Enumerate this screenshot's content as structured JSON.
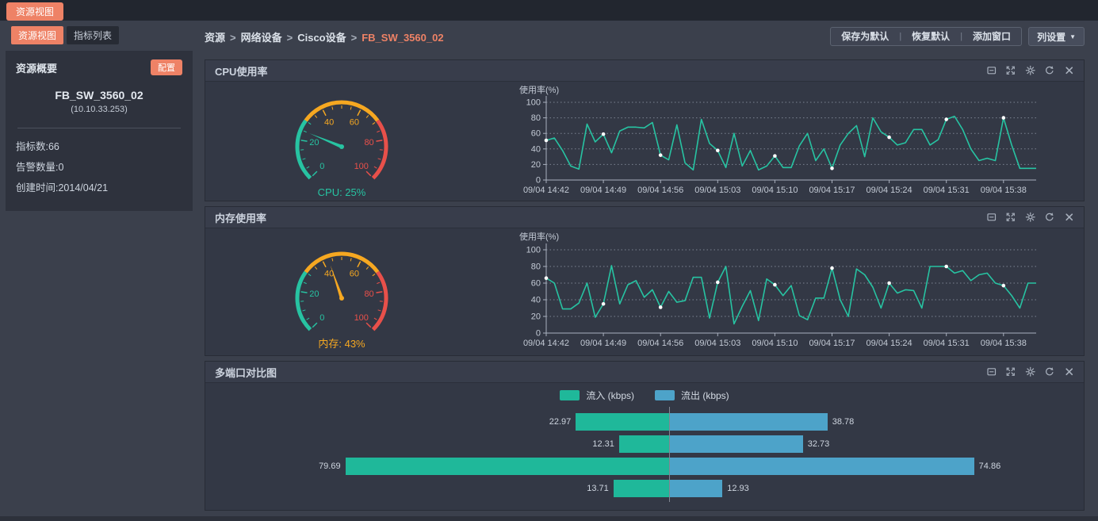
{
  "topbar": {
    "tab": "资源视图"
  },
  "sidebar": {
    "tabs": [
      {
        "label": "资源视图"
      },
      {
        "label": "指标列表"
      }
    ],
    "summary": {
      "title": "资源概要",
      "config_button": "配置",
      "device_name": "FB_SW_3560_02",
      "device_ip": "(10.10.33.253)",
      "metric_count": "指标数:66",
      "alarm_count": "告警数量:0",
      "created_time": "创建时间:2014/04/21"
    }
  },
  "breadcrumb": {
    "items": [
      "资源",
      "网络设备",
      "Cisco设备",
      "FB_SW_3560_02"
    ],
    "separator": ">"
  },
  "toolbar": {
    "save_default": "保存为默认",
    "restore_default": "恢复默认",
    "add_window": "添加窗口",
    "column_settings": "列设置"
  },
  "panels": [
    {
      "title": "CPU使用率"
    },
    {
      "title": "内存使用率"
    },
    {
      "title": "多端口对比图"
    }
  ],
  "panel_action_icons": [
    "collapse-icon",
    "fullscreen-icon",
    "settings-icon",
    "refresh-icon",
    "close-icon"
  ],
  "colors": {
    "accent": "#ee8266",
    "teal": "#27c3a2",
    "orange": "#f6a821",
    "red": "#e8504a",
    "blue": "#4da3c9"
  },
  "chart_data": [
    {
      "type": "gauge",
      "panel": "CPU使用率",
      "value": 25,
      "min": 0,
      "max": 100,
      "label": "CPU: 25%",
      "label_color": "#27c3a2",
      "needle_color": "#27c3a2",
      "segments": [
        {
          "to": 30,
          "color": "#27c3a2"
        },
        {
          "to": 70,
          "color": "#f6a821"
        },
        {
          "to": 100,
          "color": "#e8504a"
        }
      ],
      "tick_labels": [
        0,
        20,
        40,
        60,
        80,
        100
      ]
    },
    {
      "type": "line",
      "panel": "CPU使用率",
      "ylabel": "使用率(%)",
      "ylim": [
        0,
        100
      ],
      "y_ticks": [
        0,
        20,
        40,
        60,
        80,
        100
      ],
      "grid": "dotted-horizontal",
      "label_every": 7,
      "x_labels": [
        "09/04 14:42",
        "09/04 14:49",
        "09/04 14:56",
        "09/04 15:03",
        "09/04 15:10",
        "09/04 15:17",
        "09/04 15:24",
        "09/04 15:31",
        "09/04 15:38"
      ],
      "series": [
        {
          "name": "CPU使用率",
          "color": "#27c3a2",
          "values": [
            51,
            54,
            38,
            18,
            14,
            72,
            49,
            59,
            35,
            63,
            68,
            68,
            67,
            74,
            32,
            26,
            71,
            22,
            13,
            78,
            47,
            38,
            16,
            60,
            18,
            38,
            13,
            18,
            31,
            16,
            16,
            44,
            60,
            25,
            40,
            15,
            45,
            60,
            70,
            30,
            80,
            62,
            55,
            45,
            48,
            65,
            65,
            45,
            52,
            78,
            82,
            65,
            40,
            25,
            28,
            25,
            80,
            45,
            15,
            15,
            15
          ]
        }
      ]
    },
    {
      "type": "gauge",
      "panel": "内存使用率",
      "value": 43,
      "min": 0,
      "max": 100,
      "label": "内存: 43%",
      "label_color": "#f6a821",
      "needle_color": "#f6a821",
      "segments": [
        {
          "to": 30,
          "color": "#27c3a2"
        },
        {
          "to": 70,
          "color": "#f6a821"
        },
        {
          "to": 100,
          "color": "#e8504a"
        }
      ],
      "tick_labels": [
        0,
        20,
        40,
        60,
        80,
        100
      ]
    },
    {
      "type": "line",
      "panel": "内存使用率",
      "ylabel": "使用率(%)",
      "ylim": [
        0,
        100
      ],
      "y_ticks": [
        0,
        20,
        40,
        60,
        80,
        100
      ],
      "grid": "dotted-horizontal",
      "label_every": 7,
      "x_labels": [
        "09/04 14:42",
        "09/04 14:49",
        "09/04 14:56",
        "09/04 15:03",
        "09/04 15:10",
        "09/04 15:17",
        "09/04 15:24",
        "09/04 15:31",
        "09/04 15:38"
      ],
      "series": [
        {
          "name": "内存使用率",
          "color": "#27c3a2",
          "values": [
            66,
            60,
            29,
            29,
            36,
            60,
            19,
            35,
            81,
            35,
            58,
            63,
            43,
            52,
            31,
            50,
            37,
            39,
            67,
            67,
            18,
            61,
            80,
            11,
            32,
            51,
            15,
            65,
            58,
            45,
            57,
            21,
            16,
            42,
            42,
            78,
            40,
            20,
            77,
            70,
            55,
            30,
            60,
            48,
            52,
            51,
            30,
            80,
            80,
            80,
            72,
            75,
            63,
            70,
            72,
            60,
            57,
            45,
            30,
            60,
            60
          ]
        }
      ]
    },
    {
      "type": "bar",
      "panel": "多端口对比图",
      "orientation": "diverging-horizontal",
      "axis_max": 80,
      "legend": [
        {
          "label": "流入 (kbps)",
          "color": "#1fb89a"
        },
        {
          "label": "流出 (kbps)",
          "color": "#4da3c9"
        }
      ],
      "rows": [
        {
          "in": 22.97,
          "out": 38.78
        },
        {
          "in": 12.31,
          "out": 32.73
        },
        {
          "in": 79.69,
          "out": 74.86
        },
        {
          "in": 13.71,
          "out": 12.93
        }
      ]
    }
  ]
}
